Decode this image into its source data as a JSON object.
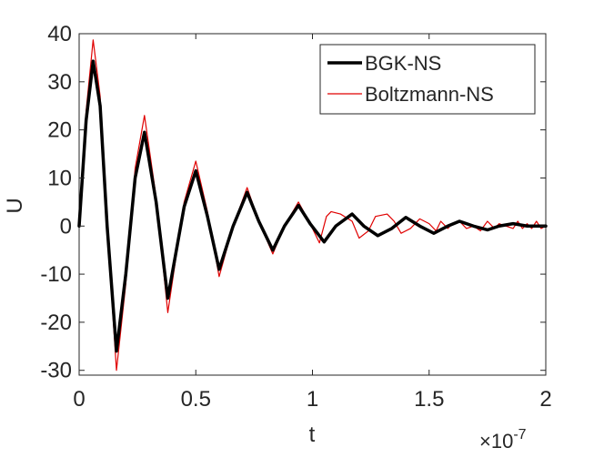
{
  "chart_data": {
    "type": "line",
    "xlabel": "t",
    "ylabel": "U",
    "x_multiplier_label": "×10",
    "x_multiplier_exponent": "-7",
    "xlim": [
      0,
      2
    ],
    "ylim": [
      -31,
      40
    ],
    "xticks": [
      0,
      0.5,
      1,
      1.5,
      2
    ],
    "xtick_labels": [
      "0",
      "0.5",
      "1",
      "1.5",
      "2"
    ],
    "yticks": [
      -30,
      -20,
      -10,
      0,
      10,
      20,
      30,
      40
    ],
    "ytick_labels": [
      "-30",
      "-20",
      "-10",
      "0",
      "10",
      "20",
      "30",
      "40"
    ],
    "grid": false,
    "legend_position": "top-right",
    "series": [
      {
        "name": "BGK-NS",
        "color": "#000000",
        "x": [
          0,
          0.03,
          0.06,
          0.09,
          0.12,
          0.16,
          0.2,
          0.24,
          0.28,
          0.33,
          0.38,
          0.45,
          0.5,
          0.55,
          0.6,
          0.66,
          0.72,
          0.77,
          0.83,
          0.88,
          0.94,
          0.99,
          1.05,
          1.1,
          1.17,
          1.22,
          1.28,
          1.34,
          1.4,
          1.46,
          1.52,
          1.58,
          1.63,
          1.69,
          1.75,
          1.8,
          1.86,
          1.92,
          2.0
        ],
        "y": [
          0,
          22,
          34.3,
          25,
          0,
          -26,
          -10,
          10,
          19.5,
          5,
          -15,
          4,
          11.5,
          2,
          -9,
          0,
          7,
          1,
          -5,
          0,
          4.3,
          0.5,
          -3.3,
          0,
          2.5,
          0,
          -2,
          -0.5,
          1.8,
          0,
          -1.5,
          0,
          1,
          0,
          -0.8,
          0,
          0.5,
          0,
          0
        ]
      },
      {
        "name": "Boltzmann-NS",
        "color": "#e00000",
        "x": [
          0,
          0.03,
          0.06,
          0.09,
          0.12,
          0.16,
          0.2,
          0.24,
          0.28,
          0.33,
          0.38,
          0.45,
          0.5,
          0.55,
          0.6,
          0.66,
          0.72,
          0.77,
          0.83,
          0.88,
          0.94,
          0.99,
          1.03,
          1.06,
          1.08,
          1.12,
          1.17,
          1.2,
          1.24,
          1.27,
          1.32,
          1.35,
          1.38,
          1.42,
          1.46,
          1.5,
          1.53,
          1.55,
          1.58,
          1.6,
          1.63,
          1.66,
          1.69,
          1.72,
          1.75,
          1.78,
          1.8,
          1.83,
          1.86,
          1.88,
          1.9,
          1.92,
          1.94,
          1.96,
          1.98,
          2.0
        ],
        "y": [
          0,
          24,
          38.7,
          27,
          0,
          -30,
          -12,
          12,
          23,
          6,
          -18,
          5,
          13.5,
          3,
          -10.5,
          0,
          8,
          1,
          -5.8,
          0,
          5,
          0.5,
          -3.5,
          2,
          3,
          2.5,
          1,
          -2.5,
          -1,
          2,
          2.5,
          1,
          -1.5,
          -0.5,
          1.5,
          0.5,
          -1,
          1,
          -0.5,
          0.5,
          1,
          -0.5,
          0,
          -1,
          1,
          -0.5,
          0.5,
          0,
          -0.5,
          1,
          -0.5,
          0.5,
          -0.5,
          1,
          -0.5,
          0
        ]
      }
    ]
  }
}
